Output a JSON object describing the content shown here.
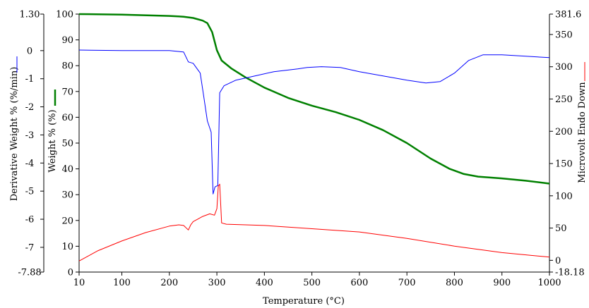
{
  "chart_data": {
    "type": "line",
    "title": "",
    "xlabel": "Temperature (°C)",
    "xlim": [
      10,
      1000
    ],
    "x_ticks": [
      10,
      100,
      200,
      300,
      400,
      500,
      600,
      700,
      800,
      900,
      1000
    ],
    "axes": {
      "weight": {
        "label": "Weight % (%)",
        "ylim": [
          0,
          100
        ],
        "ticks": [
          0,
          10,
          20,
          30,
          40,
          50,
          60,
          70,
          80,
          90,
          100
        ],
        "color": "#008000"
      },
      "derivative": {
        "label": "Derivative Weight % (%/min)",
        "ylim": [
          -7.88,
          1.3
        ],
        "ticks": [
          -7.88,
          -7,
          -6,
          -5,
          -4,
          -3,
          -2,
          -1,
          0,
          1.3
        ],
        "tick_labels": [
          "-7.88",
          "-7",
          "-6",
          "-5",
          "-4",
          "-3",
          "-2",
          "-1",
          "0",
          "1.30"
        ],
        "color": "#0000ff"
      },
      "microvolt": {
        "label": "Microvolt Endo Down",
        "ylim": [
          -18.18,
          381.6
        ],
        "ticks": [
          -18.18,
          0,
          50,
          100,
          150,
          200,
          250,
          300,
          350,
          381.6
        ],
        "tick_labels": [
          "-18.18",
          "0",
          "50",
          "100",
          "150",
          "200",
          "250",
          "300",
          "350",
          "381.6"
        ],
        "color": "#ff0000"
      }
    },
    "series": [
      {
        "axis": "weight",
        "color": "#008000",
        "x": [
          10,
          100,
          200,
          230,
          250,
          270,
          280,
          290,
          300,
          310,
          330,
          360,
          400,
          450,
          500,
          550,
          600,
          650,
          700,
          750,
          790,
          820,
          850,
          900,
          950,
          1000
        ],
        "y": [
          100,
          99.8,
          99.3,
          99,
          98.5,
          97.5,
          96.5,
          93,
          86,
          82,
          79,
          75.5,
          71.5,
          67.5,
          64.5,
          62,
          59,
          55,
          50,
          44,
          40,
          38,
          37,
          36.3,
          35.4,
          34.3
        ]
      },
      {
        "axis": "derivative",
        "color": "#0000ff",
        "x": [
          10,
          100,
          200,
          230,
          240,
          250,
          265,
          272,
          280,
          288,
          292,
          296,
          302,
          306,
          315,
          340,
          380,
          420,
          470,
          490,
          520,
          560,
          600,
          650,
          700,
          740,
          770,
          800,
          830,
          860,
          900,
          950,
          1000
        ],
        "y": [
          0.02,
          0,
          0,
          -0.05,
          -0.4,
          -0.45,
          -0.8,
          -1.6,
          -2.5,
          -2.9,
          -5.1,
          -4.85,
          -4.8,
          -1.5,
          -1.25,
          -1.05,
          -0.9,
          -0.75,
          -0.65,
          -0.6,
          -0.57,
          -0.6,
          -0.75,
          -0.9,
          -1.05,
          -1.15,
          -1.1,
          -0.8,
          -0.35,
          -0.15,
          -0.15,
          -0.2,
          -0.25
        ]
      },
      {
        "axis": "microvolt",
        "color": "#ff0000",
        "x": [
          10,
          50,
          100,
          150,
          200,
          220,
          230,
          240,
          245,
          250,
          260,
          270,
          285,
          295,
          300,
          303,
          306,
          310,
          320,
          400,
          500,
          600,
          700,
          800,
          900,
          1000
        ],
        "y": [
          -1,
          15,
          30,
          43,
          53,
          55,
          54,
          47,
          55,
          60,
          64,
          68,
          72,
          70,
          80,
          115,
          118,
          58,
          56,
          54,
          49,
          44,
          34,
          22,
          12,
          5
        ]
      }
    ]
  }
}
